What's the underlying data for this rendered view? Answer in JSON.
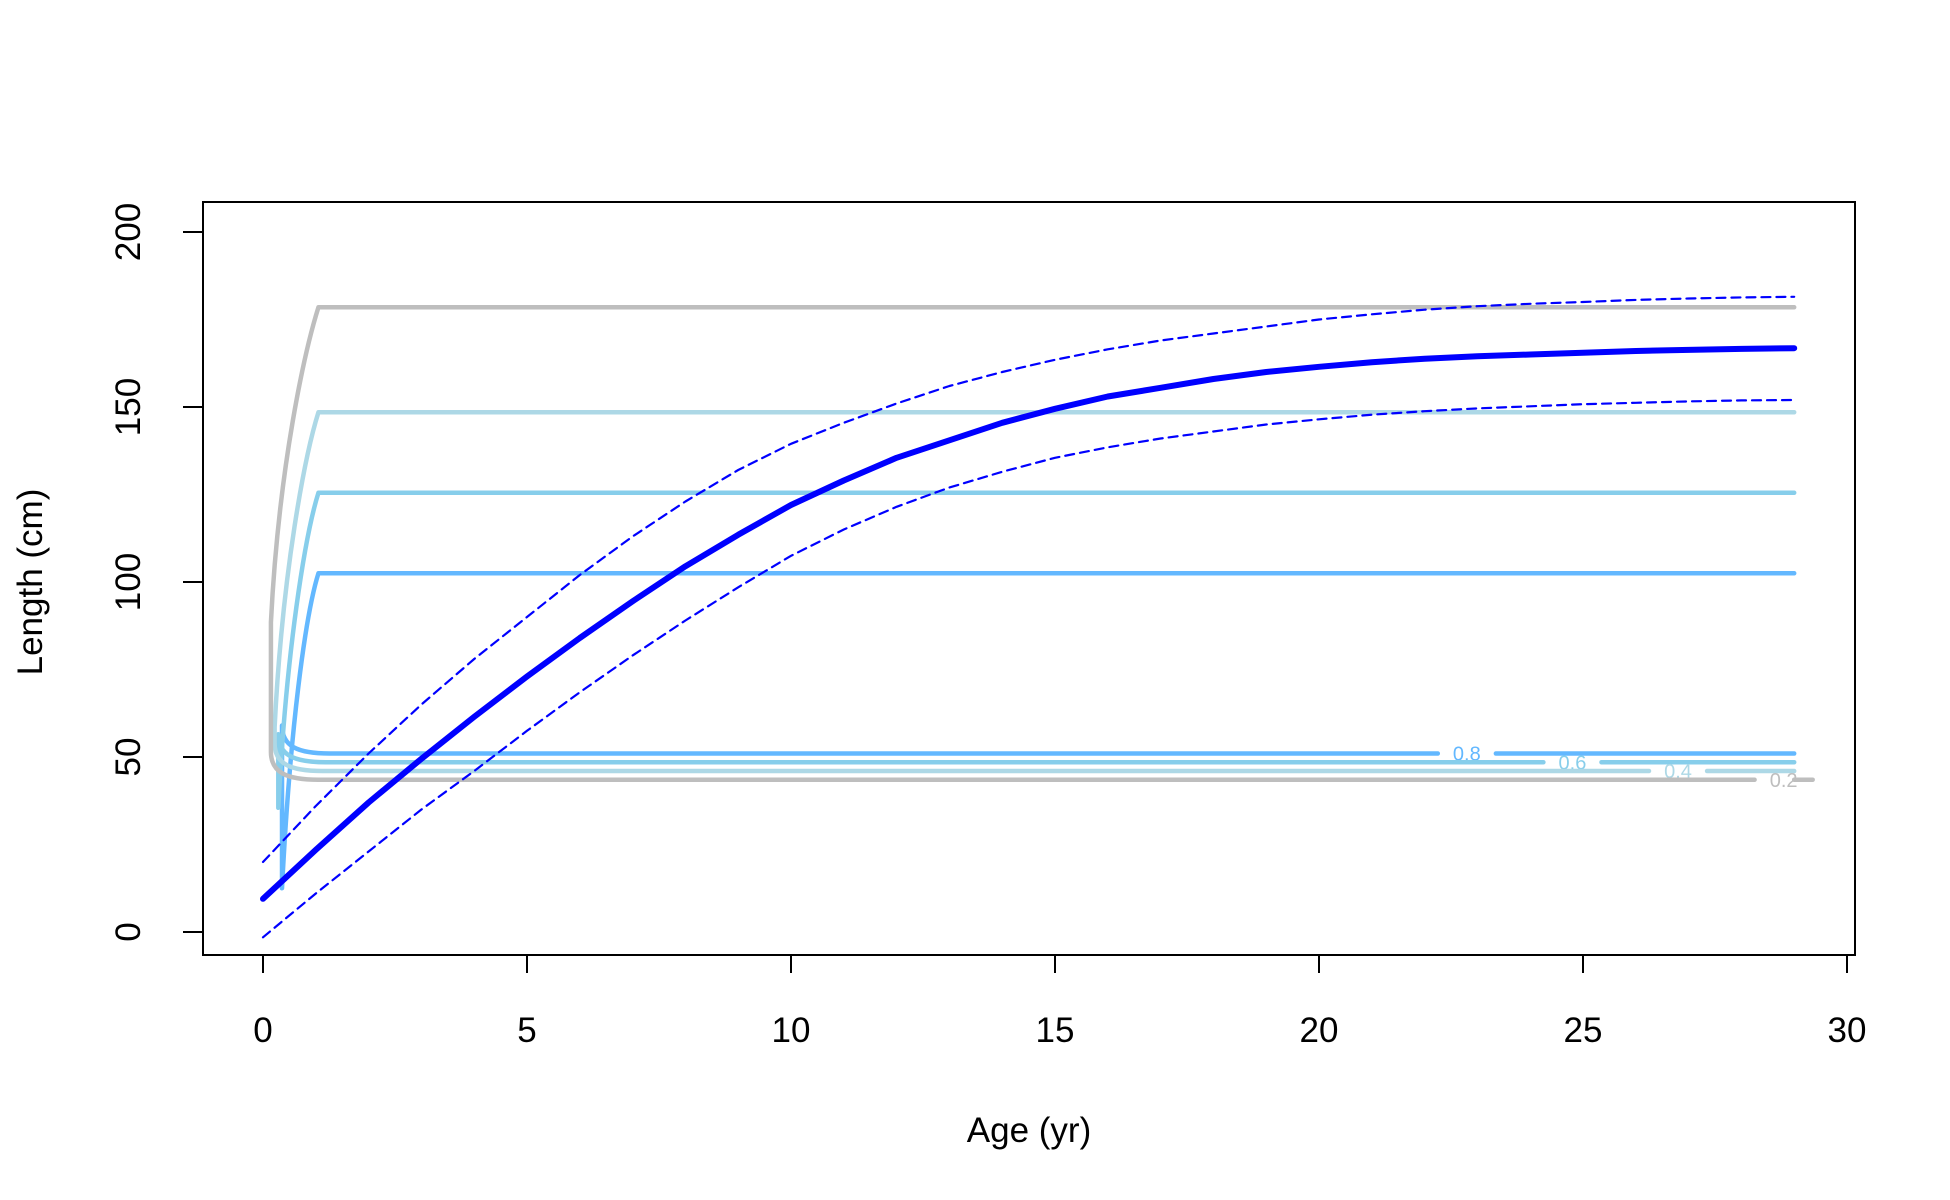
{
  "chart_data": {
    "type": "line",
    "xlabel": "Age (yr)",
    "ylabel": "Length (cm)",
    "xlim": [
      0,
      30
    ],
    "ylim": [
      0,
      200
    ],
    "x_ticks": [
      0,
      5,
      10,
      15,
      20,
      25,
      30
    ],
    "y_ticks": [
      0,
      50,
      100,
      150,
      200
    ],
    "grid": false,
    "colors": {
      "mean": "#0000ff",
      "ci": "#0000ff",
      "contour_0_2": "#bebebe",
      "contour_0_4": "#add8e6",
      "contour_0_6": "#87ceeb",
      "contour_0_8": "#63b8ff"
    },
    "contours": [
      {
        "level": "0.2",
        "color": "#bebebe",
        "low": 43.5,
        "high": 178.5,
        "x_end": 29,
        "label_x": 28.6,
        "label_y": 43.5
      },
      {
        "level": "0.4",
        "color": "#add8e6",
        "low": 46.0,
        "high": 148.5,
        "x_end": 29,
        "label_x": 26.6,
        "label_y": 46.0
      },
      {
        "level": "0.6",
        "color": "#87ceeb",
        "low": 48.5,
        "high": 125.5,
        "x_end": 29,
        "label_x": 24.6,
        "label_y": 48.5
      },
      {
        "level": "0.8",
        "color": "#63b8ff",
        "low": 51.0,
        "high": 102.5,
        "x_end": 29,
        "label_x": 22.6,
        "label_y": 51.0
      }
    ],
    "series": [
      {
        "role": "mean",
        "x": [
          0,
          1,
          2,
          3,
          4,
          5,
          6,
          7,
          8,
          9,
          10,
          11,
          12,
          13,
          14,
          15,
          16,
          17,
          18,
          19,
          20,
          21,
          22,
          23,
          24,
          25,
          26,
          27,
          28,
          29
        ],
        "y": [
          9.5,
          23.5,
          37,
          49.5,
          61.5,
          73,
          84,
          94.5,
          104.5,
          113.5,
          122,
          129,
          135.5,
          140.5,
          145.5,
          149.5,
          153,
          155.5,
          158,
          160,
          161.5,
          162.8,
          163.8,
          164.5,
          165,
          165.5,
          166,
          166.3,
          166.6,
          166.8
        ]
      },
      {
        "role": "upper",
        "x": [
          0,
          1,
          2,
          3,
          4,
          5,
          6,
          7,
          8,
          9,
          10,
          11,
          12,
          13,
          14,
          15,
          16,
          17,
          18,
          19,
          20,
          21,
          22,
          23,
          24,
          25,
          26,
          27,
          28,
          29
        ],
        "y": [
          20,
          36,
          51,
          65,
          78,
          90,
          102,
          113,
          123,
          132,
          139.5,
          145.5,
          151,
          156,
          160,
          163.5,
          166.5,
          169,
          171,
          173,
          175,
          176.5,
          177.8,
          178.8,
          179.5,
          180,
          180.6,
          181,
          181.3,
          181.5
        ]
      },
      {
        "role": "lower",
        "x": [
          0,
          1,
          2,
          3,
          4,
          5,
          6,
          7,
          8,
          9,
          10,
          11,
          12,
          13,
          14,
          15,
          16,
          17,
          18,
          19,
          20,
          21,
          22,
          23,
          24,
          25,
          26,
          27,
          28,
          29
        ],
        "y": [
          -1.5,
          11,
          23,
          35,
          46,
          57.5,
          68.5,
          79,
          89,
          98.5,
          107.5,
          115,
          121.5,
          127,
          131.5,
          135.5,
          138.5,
          141,
          143,
          145,
          146.5,
          147.8,
          148.8,
          149.6,
          150.2,
          150.8,
          151.2,
          151.6,
          151.9,
          152
        ]
      }
    ]
  }
}
